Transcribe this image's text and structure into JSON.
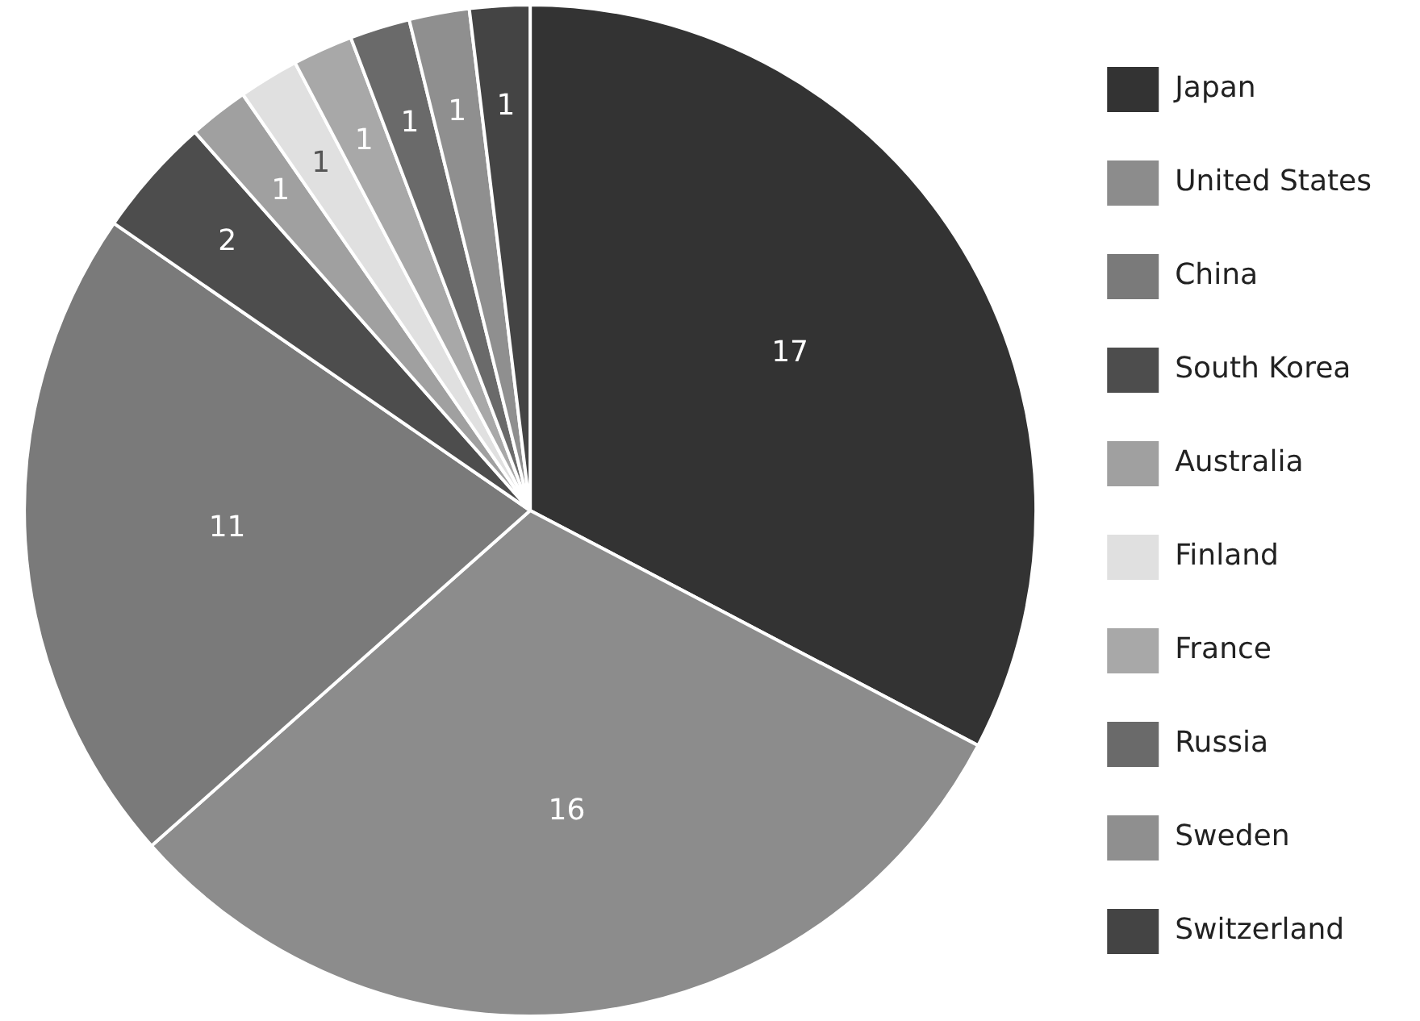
{
  "chart_data": {
    "type": "pie",
    "categories": [
      "Japan",
      "United States",
      "China",
      "South Korea",
      "Australia",
      "Finland",
      "France",
      "Russia",
      "Sweden",
      "Switzerland"
    ],
    "values": [
      17,
      16,
      11,
      2,
      1,
      1,
      1,
      1,
      1,
      1
    ],
    "colors": [
      "#333333",
      "#8c8c8c",
      "#7a7a7a",
      "#4d4d4d",
      "#a0a0a0",
      "#e0e0e0",
      "#a8a8a8",
      "#6a6a6a",
      "#8f8f8f",
      "#444444"
    ],
    "data_labels": true,
    "legend": "right"
  }
}
